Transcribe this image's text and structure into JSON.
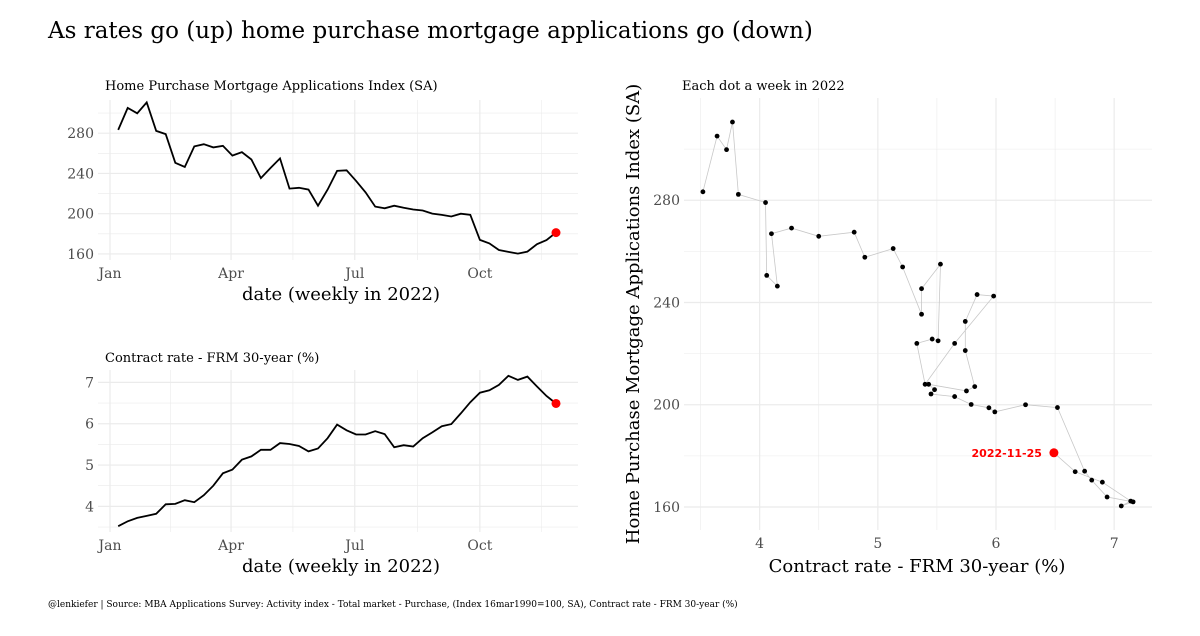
{
  "title": "As rates go (up) home purchase mortgage applications go (down)",
  "caption": "@lenkiefer | Source: MBA Applications Survey: Activity index - Total market - Purchase, (Index 16mar1990=100, SA), Contract rate - FRM 30-year (%)",
  "colors": {
    "line": "#000000",
    "highlight": "#ff0000",
    "grid": "#ebebeb",
    "connector": "#c8c8c8",
    "tick_label": "#4d4d4d"
  },
  "chart_data": [
    {
      "type": "line",
      "title": "Home Purchase Mortgage Applications Index (SA)",
      "xlabel": "date (weekly in 2022)",
      "ylabel": "",
      "x_ticks": [
        "Jan",
        "Apr",
        "Jul",
        "Oct"
      ],
      "y_ticks": [
        160,
        200,
        240,
        280
      ],
      "ylim": [
        154,
        313
      ],
      "grid": true,
      "highlight": "last point in red",
      "series": [
        {
          "values": [
            283.3,
            305.1,
            299.8,
            310.6,
            282.3,
            279.1,
            250.6,
            246.4,
            266.9,
            269.1,
            265.9,
            267.5,
            257.7,
            261.1,
            253.9,
            235.4,
            245.4,
            255.0,
            225.0,
            225.7,
            224.0,
            208.0,
            224.0,
            242.5,
            243.1,
            232.6,
            221.2,
            207.1,
            205.4,
            208.0,
            205.9,
            204.2,
            203.2,
            200.1,
            198.8,
            197.2,
            200.0,
            198.9,
            174.0,
            170.5,
            163.9,
            162.0,
            160.4,
            162.3,
            169.7,
            173.8,
            181.2
          ]
        }
      ]
    },
    {
      "type": "line",
      "title": "Contract rate - FRM 30-year (%)",
      "xlabel": "date (weekly in 2022)",
      "ylabel": "",
      "x_ticks": [
        "Jan",
        "Apr",
        "Jul",
        "Oct"
      ],
      "y_ticks": [
        4,
        5,
        6,
        7
      ],
      "ylim": [
        3.38,
        7.3
      ],
      "grid": true,
      "highlight": "last point in red",
      "series": [
        {
          "values": [
            3.52,
            3.64,
            3.72,
            3.77,
            3.82,
            4.05,
            4.06,
            4.15,
            4.1,
            4.27,
            4.5,
            4.8,
            4.89,
            5.13,
            5.21,
            5.37,
            5.37,
            5.53,
            5.51,
            5.46,
            5.33,
            5.4,
            5.65,
            5.98,
            5.84,
            5.74,
            5.74,
            5.82,
            5.75,
            5.43,
            5.48,
            5.45,
            5.65,
            5.79,
            5.94,
            5.99,
            6.25,
            6.52,
            6.75,
            6.81,
            6.94,
            7.16,
            7.06,
            7.14,
            6.9,
            6.67,
            6.49
          ]
        }
      ]
    },
    {
      "type": "scatter",
      "title": "Each dot a week in 2022",
      "xlabel": "Contract rate - FRM 30-year (%)",
      "ylabel": "Home Purchase Mortgage Applications Index (SA)",
      "x_ticks": [
        4,
        5,
        6,
        7
      ],
      "y_ticks": [
        160,
        200,
        240,
        280
      ],
      "xlim": [
        3.36,
        7.32
      ],
      "ylim": [
        151,
        320
      ],
      "grid": true,
      "connected": true,
      "annotation": {
        "label": "2022-11-25",
        "x": 6.49,
        "y": 181.2
      },
      "points_note": "x = contract rate series, y = applications index series (same weeks)"
    }
  ]
}
